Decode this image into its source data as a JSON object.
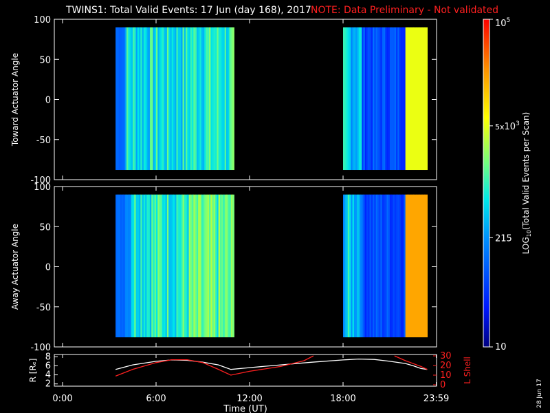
{
  "header": {
    "title": "TWINS1: Total Valid Events: 17 Jun (day 168), 2017",
    "note": "NOTE: Data Preliminary - Not validated"
  },
  "date_stamp": "28 Jun 17",
  "colors": {
    "title": "#ffffff",
    "note": "#ff2020",
    "lshell": "#ff2020",
    "radius": "#ffffff"
  },
  "chart_data": [
    {
      "type": "heatmap",
      "ylabel": "Toward Actuator Angle",
      "ylim": [
        -100,
        100
      ],
      "yticks": [
        "100",
        "50",
        "0",
        "-50",
        "-100"
      ],
      "xlim": [
        0,
        24
      ],
      "data_blocks": [
        {
          "start_hour": 3.4,
          "end_hour": 11.0
        },
        {
          "start_hour": 18.0,
          "end_hour": 23.4
        }
      ],
      "angle_range": [
        -88,
        90
      ]
    },
    {
      "type": "heatmap",
      "ylabel": "Away Actuator Angle",
      "ylim": [
        -100,
        100
      ],
      "yticks": [
        "100",
        "50",
        "0",
        "-50",
        "-100"
      ],
      "xlim": [
        0,
        24
      ],
      "data_blocks": [
        {
          "start_hour": 3.4,
          "end_hour": 11.0
        },
        {
          "start_hour": 18.0,
          "end_hour": 23.4
        }
      ],
      "angle_range": [
        -88,
        90
      ]
    },
    {
      "type": "line",
      "left_axis": {
        "label": "R [Rₑ]",
        "ylim": [
          1.5,
          8.5
        ],
        "ticks": [
          "8",
          "6",
          "4",
          "2"
        ]
      },
      "right_axis": {
        "label": "L Shell",
        "ylim": [
          0,
          30
        ],
        "ticks": [
          "30",
          "20",
          "10",
          "0"
        ]
      },
      "xlabel": "Time (UT)",
      "xlim": [
        0,
        24
      ],
      "xtick_labels": [
        "0:00",
        "6:00",
        "12:00",
        "18:00",
        "23:59"
      ],
      "series": [
        {
          "axis": "left",
          "color": "#ffffff",
          "x": [
            3.4,
            4.5,
            6.0,
            7.0,
            8.0,
            9.0,
            10.0,
            10.8,
            12.0,
            14.0,
            16.0,
            18.0,
            19.0,
            20.0,
            21.0,
            22.0,
            22.5,
            23.0,
            23.4
          ],
          "y": [
            5.2,
            6.2,
            7.0,
            7.3,
            7.2,
            6.8,
            6.2,
            5.2,
            5.6,
            6.2,
            6.8,
            7.3,
            7.5,
            7.4,
            7.0,
            6.5,
            6.0,
            5.4,
            5.2
          ]
        },
        {
          "axis": "right",
          "color": "#ff2020",
          "segments": [
            {
              "x": [
                3.4,
                4.5,
                6.0,
                7.0,
                8.0,
                9.0,
                10.0,
                10.8,
                12.0,
                14.0,
                15.5,
                16.1
              ],
              "y": [
                9,
                16,
                23,
                26,
                26,
                23,
                16,
                10,
                14,
                19,
                25,
                30
              ]
            },
            {
              "x": [
                21.3,
                22.0,
                22.5,
                23.0,
                23.4
              ],
              "y": [
                30,
                25,
                22,
                19,
                16
              ]
            }
          ]
        }
      ]
    }
  ],
  "colorbar": {
    "label": "LOG10(Total Valid Events per Scan)",
    "label_main": "LOG",
    "label_sub": "10",
    "label_rest": "(Total Valid Events per Scan)",
    "tick_labels": [
      {
        "mant": "",
        "base": "10",
        "exp": "5",
        "value": 100000
      },
      {
        "mant": "5x",
        "base": "10",
        "exp": "3",
        "value": 5000
      },
      {
        "mant": "",
        "base": "215",
        "exp": "",
        "value": 215
      },
      {
        "mant": "",
        "base": "10",
        "exp": "",
        "value": 10
      }
    ],
    "scale": "log",
    "range": [
      10,
      100000
    ]
  }
}
